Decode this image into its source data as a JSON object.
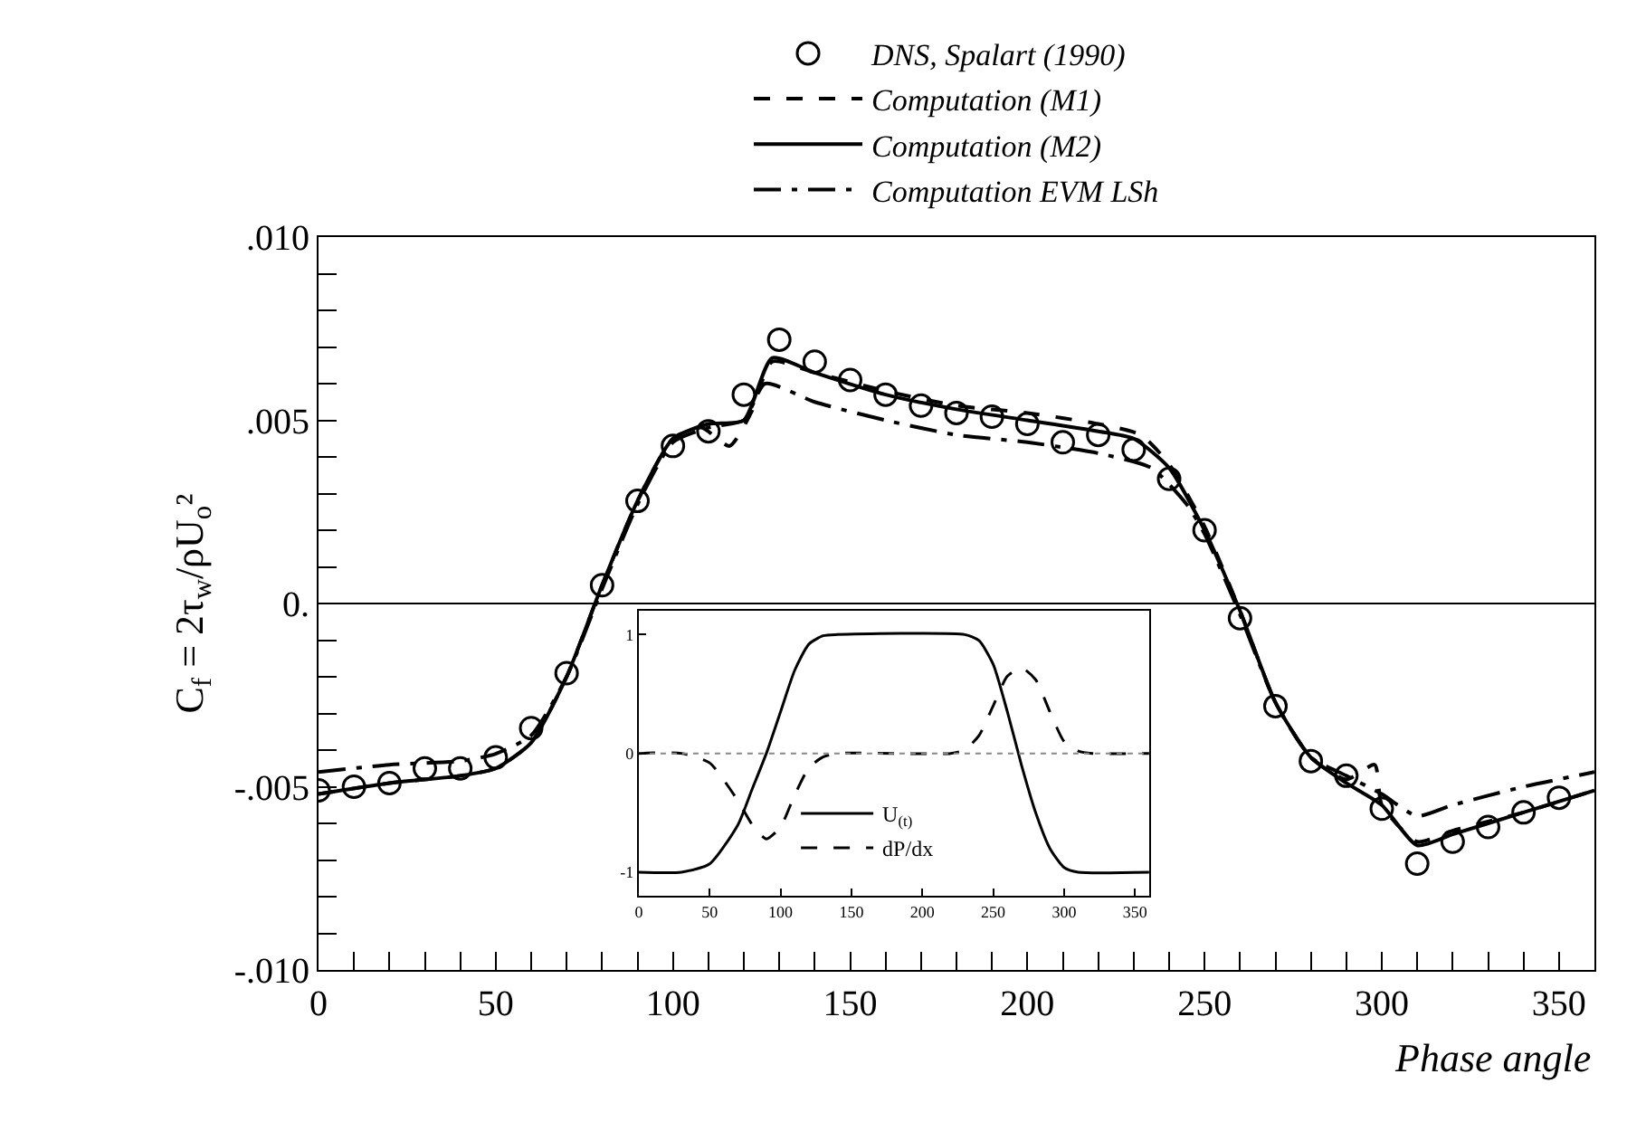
{
  "chart_data": [
    {
      "type": "line",
      "xlabel": "Phase angle",
      "ylabel": "C$_{f}$ = 2τ$_{w}$/ρU$_{o}$²",
      "xlim": [
        0,
        360
      ],
      "ylim": [
        -0.01,
        0.01
      ],
      "xticks": [
        0,
        {
          "value": 10,
          "label": null
        },
        {
          "value": 20,
          "label": null
        },
        {
          "value": 30,
          "label": null
        },
        {
          "value": 40,
          "label": null
        },
        50,
        {
          "value": 60,
          "label": null
        },
        {
          "value": 70,
          "label": null
        },
        {
          "value": 80,
          "label": null
        },
        {
          "value": 90,
          "label": null
        },
        100,
        {
          "value": 110,
          "label": null
        },
        {
          "value": 120,
          "label": null
        },
        {
          "value": 130,
          "label": null
        },
        {
          "value": 140,
          "label": null
        },
        150,
        {
          "value": 160,
          "label": null
        },
        {
          "value": 170,
          "label": null
        },
        {
          "value": 180,
          "label": null
        },
        {
          "value": 190,
          "label": null
        },
        200,
        {
          "value": 210,
          "label": null
        },
        {
          "value": 220,
          "label": null
        },
        {
          "value": 230,
          "label": null
        },
        {
          "value": 240,
          "label": null
        },
        250,
        {
          "value": 260,
          "label": null
        },
        {
          "value": 270,
          "label": null
        },
        {
          "value": 280,
          "label": null
        },
        {
          "value": 290,
          "label": null
        },
        300,
        {
          "value": 310,
          "label": null
        },
        {
          "value": 320,
          "label": null
        },
        {
          "value": 330,
          "label": null
        },
        {
          "value": 340,
          "label": null
        },
        350
      ],
      "yticks": [
        {
          "value": -0.01,
          "label": "-.010"
        },
        {
          "value": -0.009,
          "label": null
        },
        {
          "value": -0.008,
          "label": null
        },
        {
          "value": -0.007,
          "label": null
        },
        {
          "value": -0.006,
          "label": null
        },
        {
          "value": -0.005,
          "label": "-.005"
        },
        {
          "value": -0.004,
          "label": null
        },
        {
          "value": -0.003,
          "label": null
        },
        {
          "value": -0.002,
          "label": null
        },
        {
          "value": -0.001,
          "label": null
        },
        {
          "value": 0,
          "label": "0."
        },
        {
          "value": 0.001,
          "label": null
        },
        {
          "value": 0.002,
          "label": null
        },
        {
          "value": 0.003,
          "label": null
        },
        {
          "value": 0.004,
          "label": null
        },
        {
          "value": 0.005,
          "label": ".005"
        },
        {
          "value": 0.006,
          "label": null
        },
        {
          "value": 0.007,
          "label": null
        },
        {
          "value": 0.008,
          "label": null
        },
        {
          "value": 0.009,
          "label": null
        },
        {
          "value": 0.01,
          "label": ".010"
        }
      ],
      "legend": "top",
      "ref_lines": [
        {
          "axis": "y",
          "value": 0,
          "color": "#000000",
          "line_style": "solid"
        }
      ],
      "series": [
        {
          "name": "DNS, Spalart (1990)",
          "type": "scatter",
          "marker": "circle",
          "color": "#000000",
          "x": [
            0,
            10,
            20,
            30,
            40,
            50,
            60,
            70,
            80,
            90,
            100,
            110,
            120,
            130,
            140,
            150,
            160,
            170,
            180,
            190,
            200,
            210,
            220,
            230,
            240,
            250,
            260,
            270,
            280,
            290,
            300,
            310,
            320,
            330,
            340,
            350
          ],
          "values": [
            -0.0051,
            -0.005,
            -0.0049,
            -0.0045,
            -0.0045,
            -0.0042,
            -0.0034,
            -0.0019,
            0.0005,
            0.0028,
            0.0043,
            0.0047,
            0.0057,
            0.0072,
            0.0066,
            0.0061,
            0.0057,
            0.0054,
            0.0052,
            0.0051,
            0.0049,
            0.0044,
            0.0046,
            0.0042,
            0.0034,
            0.002,
            -0.0004,
            -0.0028,
            -0.0043,
            -0.0047,
            -0.0056,
            -0.0071,
            -0.0065,
            -0.0061,
            -0.0057,
            -0.0053
          ]
        },
        {
          "name": "Computation (M1)",
          "type": "line",
          "line_style": "dashed",
          "color": "#000000",
          "x": [
            0,
            20,
            40,
            50,
            60,
            70,
            80,
            90,
            100,
            108,
            116,
            122,
            128,
            140,
            160,
            180,
            200,
            220,
            232,
            240,
            250,
            260,
            270,
            280,
            290,
            298,
            300,
            310,
            320,
            340,
            360
          ],
          "values": [
            -0.0052,
            -0.0049,
            -0.0047,
            -0.0045,
            -0.0038,
            -0.002,
            0.0005,
            0.0028,
            0.0045,
            0.0048,
            0.0043,
            0.0052,
            0.0066,
            0.0063,
            0.0058,
            0.0054,
            0.0052,
            0.0049,
            0.0046,
            0.0038,
            0.0021,
            -0.0002,
            -0.0027,
            -0.0042,
            -0.0048,
            -0.0044,
            -0.0055,
            -0.0065,
            -0.0062,
            -0.0057,
            -0.0051
          ]
        },
        {
          "name": "Computation (M2)",
          "type": "line",
          "line_style": "solid",
          "color": "#000000",
          "x": [
            0,
            20,
            40,
            50,
            60,
            70,
            80,
            90,
            100,
            110,
            120,
            128,
            140,
            160,
            180,
            200,
            220,
            230,
            240,
            250,
            260,
            270,
            280,
            290,
            300,
            310,
            320,
            340,
            360
          ],
          "values": [
            -0.0052,
            -0.0049,
            -0.0047,
            -0.0045,
            -0.0038,
            -0.002,
            0.0005,
            0.0028,
            0.0045,
            0.0049,
            0.005,
            0.0067,
            0.0063,
            0.0057,
            0.0053,
            0.005,
            0.0047,
            0.0045,
            0.0037,
            0.002,
            -0.0002,
            -0.0027,
            -0.0042,
            -0.0049,
            -0.0055,
            -0.0066,
            -0.0063,
            -0.0057,
            -0.0051
          ]
        },
        {
          "name": "Computation EVM LSh",
          "type": "line",
          "line_style": "dashdot",
          "color": "#000000",
          "x": [
            0,
            20,
            40,
            50,
            60,
            70,
            80,
            90,
            100,
            110,
            120,
            126,
            140,
            160,
            180,
            200,
            220,
            235,
            245,
            250,
            260,
            270,
            280,
            290,
            300,
            310,
            320,
            340,
            360
          ],
          "values": [
            -0.0046,
            -0.0044,
            -0.0043,
            -0.0041,
            -0.0036,
            -0.002,
            0.0004,
            0.0027,
            0.0044,
            0.0048,
            0.005,
            0.006,
            0.0055,
            0.005,
            0.0046,
            0.0044,
            0.0041,
            0.0037,
            0.0027,
            0.0019,
            -0.0003,
            -0.0027,
            -0.0042,
            -0.0047,
            -0.0052,
            -0.0058,
            -0.0055,
            -0.005,
            -0.0046
          ]
        }
      ]
    },
    {
      "type": "line",
      "xlim": [
        0,
        360
      ],
      "ylim": [
        -1.2,
        1.2
      ],
      "xticks": [
        0,
        50,
        100,
        150,
        200,
        250,
        300,
        350
      ],
      "yticks": [
        -1,
        0,
        1
      ],
      "legend": "bottom",
      "ref_lines": [
        {
          "axis": "y",
          "value": 0,
          "color": "#888888",
          "line_style": "dotted"
        }
      ],
      "series": [
        {
          "name": "U$_{(t)}$",
          "line_style": "solid",
          "color": "#000000",
          "x": [
            0,
            30,
            50,
            70,
            80,
            90,
            100,
            110,
            120,
            130,
            140,
            230,
            240,
            250,
            260,
            270,
            280,
            290,
            300,
            310,
            360
          ],
          "values": [
            -1,
            -1,
            -0.93,
            -0.6,
            -0.3,
            0,
            0.35,
            0.7,
            0.92,
            0.99,
            1,
            1,
            0.95,
            0.75,
            0.35,
            -0.1,
            -0.5,
            -0.8,
            -0.96,
            -1,
            -1
          ]
        },
        {
          "name": "dP/dx",
          "line_style": "dashed",
          "color": "#000000",
          "x": [
            0,
            30,
            50,
            70,
            80,
            90,
            100,
            110,
            120,
            130,
            140,
            220,
            230,
            240,
            250,
            260,
            270,
            280,
            290,
            300,
            310,
            320,
            360
          ],
          "values": [
            0,
            0,
            -0.08,
            -0.4,
            -0.6,
            -0.72,
            -0.62,
            -0.35,
            -0.12,
            -0.03,
            0,
            0,
            0.03,
            0.15,
            0.4,
            0.65,
            0.72,
            0.62,
            0.35,
            0.1,
            0.02,
            0,
            0
          ]
        }
      ]
    }
  ]
}
